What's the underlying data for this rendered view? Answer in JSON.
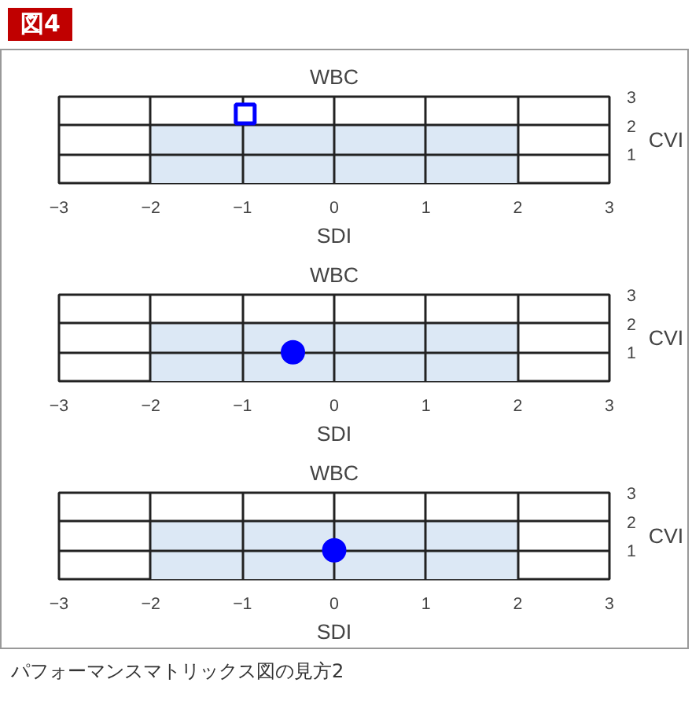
{
  "chart_data": [
    {
      "type": "scatter",
      "title": "WBC",
      "xlabel": "SDI",
      "ylabel": "CVI",
      "annotations": [
        "図4"
      ],
      "xlim": [
        -3,
        3
      ],
      "ylim": [
        0,
        3
      ],
      "xticks": [
        -3,
        -2,
        -1,
        0,
        1,
        2,
        3
      ],
      "yticks": [
        1,
        2,
        3
      ],
      "grid": true,
      "series": [
        {
          "type": "area",
          "x": [
            -2,
            2
          ],
          "values": [
            2,
            2
          ],
          "color": "#dce8f5"
        },
        {
          "x": [
            -0.97
          ],
          "values": [
            2.4
          ],
          "color": "#0000ff",
          "marker": "square"
        }
      ]
    },
    {
      "type": "scatter",
      "title": "WBC",
      "xlabel": "SDI",
      "ylabel": "CVI",
      "xlim": [
        -3,
        3
      ],
      "ylim": [
        0,
        3
      ],
      "xticks": [
        -3,
        -2,
        -1,
        0,
        1,
        2,
        3
      ],
      "yticks": [
        1,
        2,
        3
      ],
      "grid": true,
      "series": [
        {
          "type": "area",
          "x": [
            -2,
            2
          ],
          "values": [
            2,
            2
          ],
          "color": "#dce8f5"
        },
        {
          "x": [
            -0.45
          ],
          "values": [
            1.0
          ],
          "color": "#0000ff",
          "marker": "circle"
        }
      ]
    },
    {
      "type": "scatter",
      "title": "WBC",
      "xlabel": "SDI",
      "ylabel": "CVI",
      "annotations": [
        "パフォーマンスマトリックス図の見方2"
      ],
      "xlim": [
        -3,
        3
      ],
      "ylim": [
        0,
        3
      ],
      "xticks": [
        -3,
        -2,
        -1,
        0,
        1,
        2,
        3
      ],
      "yticks": [
        1,
        2,
        3
      ],
      "grid": true,
      "series": [
        {
          "type": "area",
          "x": [
            -2,
            2
          ],
          "values": [
            2,
            2
          ],
          "color": "#dce8f5"
        },
        {
          "x": [
            0
          ],
          "values": [
            1.0
          ],
          "color": "#0000ff",
          "marker": "circle"
        }
      ]
    }
  ]
}
